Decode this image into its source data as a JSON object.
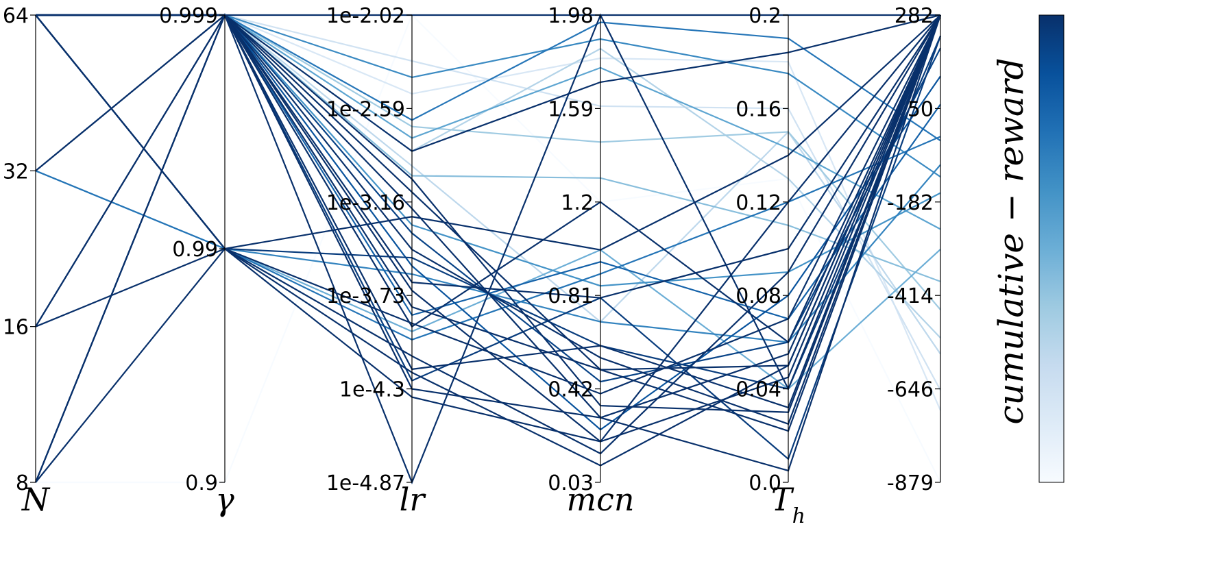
{
  "chart_data": {
    "type": "parallel-coordinates",
    "colormap": "Blues",
    "axes": [
      {
        "key": "N",
        "label": "N",
        "ticks": [
          "64",
          "32",
          "16",
          "8"
        ]
      },
      {
        "key": "gamma",
        "label": "γ",
        "ticks": [
          "0.999",
          "0.99",
          "0.9"
        ]
      },
      {
        "key": "lr",
        "label": "lr",
        "ticks": [
          "1e-2.02",
          "1e-2.59",
          "1e-3.16",
          "1e-3.73",
          "1e-4.3",
          "1e-4.87"
        ]
      },
      {
        "key": "mcn",
        "label": "mcn",
        "ticks": [
          "1.98",
          "1.59",
          "1.2",
          "0.81",
          "0.42",
          "0.03"
        ]
      },
      {
        "key": "Th",
        "label": "T",
        "label_sub": "h",
        "ticks": [
          "0.2",
          "0.16",
          "0.12",
          "0.08",
          "0.04",
          "0.0"
        ]
      },
      {
        "key": "reward",
        "label": "",
        "ticks": [
          "282",
          "50",
          "-182",
          "-414",
          "-646",
          "-879"
        ]
      }
    ],
    "colorbar": {
      "label": "cumulative − reward",
      "min": -879,
      "max": 282
    },
    "runs": [
      {
        "N": 64,
        "gamma": 0.999,
        "lr": -2.02,
        "mcn": 1.98,
        "Th": 0.2,
        "reward": 282
      },
      {
        "N": 64,
        "gamma": 0.999,
        "lr": -2.66,
        "mcn": 1.95,
        "Th": 0.19,
        "reward": -30
      },
      {
        "N": 64,
        "gamma": 0.999,
        "lr": -2.4,
        "mcn": 1.88,
        "Th": 0.175,
        "reward": -120
      },
      {
        "N": 64,
        "gamma": 0.999,
        "lr": -2.77,
        "mcn": 1.76,
        "Th": 0.143,
        "reward": -250
      },
      {
        "N": 64,
        "gamma": 0.999,
        "lr": -2.85,
        "mcn": 1.84,
        "Th": 0.13,
        "reward": -520
      },
      {
        "N": 64,
        "gamma": 0.999,
        "lr": -2.94,
        "mcn": 0.7,
        "Th": 0.15,
        "reward": -560
      },
      {
        "N": 64,
        "gamma": 0.999,
        "lr": -3.02,
        "mcn": 0.35,
        "Th": 0.03,
        "reward": 282
      },
      {
        "N": 64,
        "gamma": 0.999,
        "lr": -3.1,
        "mcn": 0.5,
        "Th": 0.05,
        "reward": 282
      },
      {
        "N": 64,
        "gamma": 0.999,
        "lr": -3.2,
        "mcn": 0.3,
        "Th": 0.005,
        "reward": 282
      },
      {
        "N": 64,
        "gamma": 0.999,
        "lr": -3.35,
        "mcn": 0.45,
        "Th": 0.06,
        "reward": 200
      },
      {
        "N": 64,
        "gamma": 0.999,
        "lr": -3.45,
        "mcn": 0.55,
        "Th": 0.025,
        "reward": 282
      },
      {
        "N": 64,
        "gamma": 0.999,
        "lr": -3.55,
        "mcn": 0.25,
        "Th": 0.08,
        "reward": 130
      },
      {
        "N": 64,
        "gamma": 0.999,
        "lr": -3.65,
        "mcn": 0.8,
        "Th": 0.1,
        "reward": 282
      },
      {
        "N": 64,
        "gamma": 0.999,
        "lr": -3.7,
        "mcn": 0.2,
        "Th": 0.12,
        "reward": 282
      },
      {
        "N": 64,
        "gamma": 0.99,
        "lr": -3.25,
        "mcn": 1.0,
        "Th": 0.14,
        "reward": 282
      },
      {
        "N": 64,
        "gamma": 0.99,
        "lr": -3.5,
        "mcn": 0.6,
        "Th": 0.04,
        "reward": 230
      },
      {
        "N": 64,
        "gamma": 0.99,
        "lr": -3.9,
        "mcn": 0.4,
        "Th": 0.07,
        "reward": 282
      },
      {
        "N": 64,
        "gamma": 0.99,
        "lr": -4.1,
        "mcn": 0.15,
        "Th": 0.09,
        "reward": 282
      },
      {
        "N": 32,
        "gamma": 0.999,
        "lr": -2.85,
        "mcn": 1.7,
        "Th": 0.184,
        "reward": 282
      },
      {
        "N": 32,
        "gamma": 0.999,
        "lr": -3.8,
        "mcn": 0.5,
        "Th": 0.022,
        "reward": 282
      },
      {
        "N": 32,
        "gamma": 0.99,
        "lr": -3.95,
        "mcn": 1.0,
        "Th": 0.04,
        "reward": -300
      },
      {
        "N": 32,
        "gamma": 0.99,
        "lr": -4.0,
        "mcn": 0.9,
        "Th": 0.12,
        "reward": -20
      },
      {
        "N": 16,
        "gamma": 0.999,
        "lr": -4.18,
        "mcn": 0.6,
        "Th": 0.032,
        "reward": 282
      },
      {
        "N": 16,
        "gamma": 0.999,
        "lr": -3.92,
        "mcn": 1.2,
        "Th": 0.06,
        "reward": 282
      },
      {
        "N": 16,
        "gamma": 0.99,
        "lr": -4.2,
        "mcn": 0.1,
        "Th": 0.05,
        "reward": 282
      },
      {
        "N": 8,
        "gamma": 0.999,
        "lr": -4.87,
        "mcn": 1.98,
        "Th": 0.04,
        "reward": 282
      },
      {
        "N": 8,
        "gamma": 0.999,
        "lr": -4.25,
        "mcn": 0.8,
        "Th": 0.01,
        "reward": 230
      },
      {
        "N": 8,
        "gamma": 0.99,
        "lr": -4.35,
        "mcn": 0.2,
        "Th": 0.045,
        "reward": 282
      },
      {
        "N": 8,
        "gamma": 0.9,
        "lr": -2.02,
        "mcn": 1.2,
        "Th": 0.13,
        "reward": -879
      },
      {
        "N": 8,
        "gamma": 0.999,
        "lr": -4.3,
        "mcn": 0.3,
        "Th": 0.055,
        "reward": 282
      },
      {
        "N": 64,
        "gamma": 0.999,
        "lr": -2.3,
        "mcn": 1.6,
        "Th": 0.16,
        "reward": -650
      },
      {
        "N": 64,
        "gamma": 0.999,
        "lr": -2.5,
        "mcn": 1.8,
        "Th": 0.18,
        "reward": -700
      },
      {
        "N": 64,
        "gamma": 0.999,
        "lr": -3.0,
        "mcn": 1.3,
        "Th": 0.11,
        "reward": -380
      },
      {
        "N": 64,
        "gamma": 0.999,
        "lr": -3.3,
        "mcn": 0.85,
        "Th": 0.09,
        "reward": -160
      },
      {
        "N": 64,
        "gamma": 0.99,
        "lr": -3.6,
        "mcn": 0.7,
        "Th": 0.06,
        "reward": -90
      },
      {
        "N": 64,
        "gamma": 0.999,
        "lr": -3.85,
        "mcn": 0.95,
        "Th": 0.07,
        "reward": 60
      },
      {
        "N": 64,
        "gamma": 0.999,
        "lr": -2.7,
        "mcn": 1.45,
        "Th": 0.15,
        "reward": -450
      }
    ]
  }
}
